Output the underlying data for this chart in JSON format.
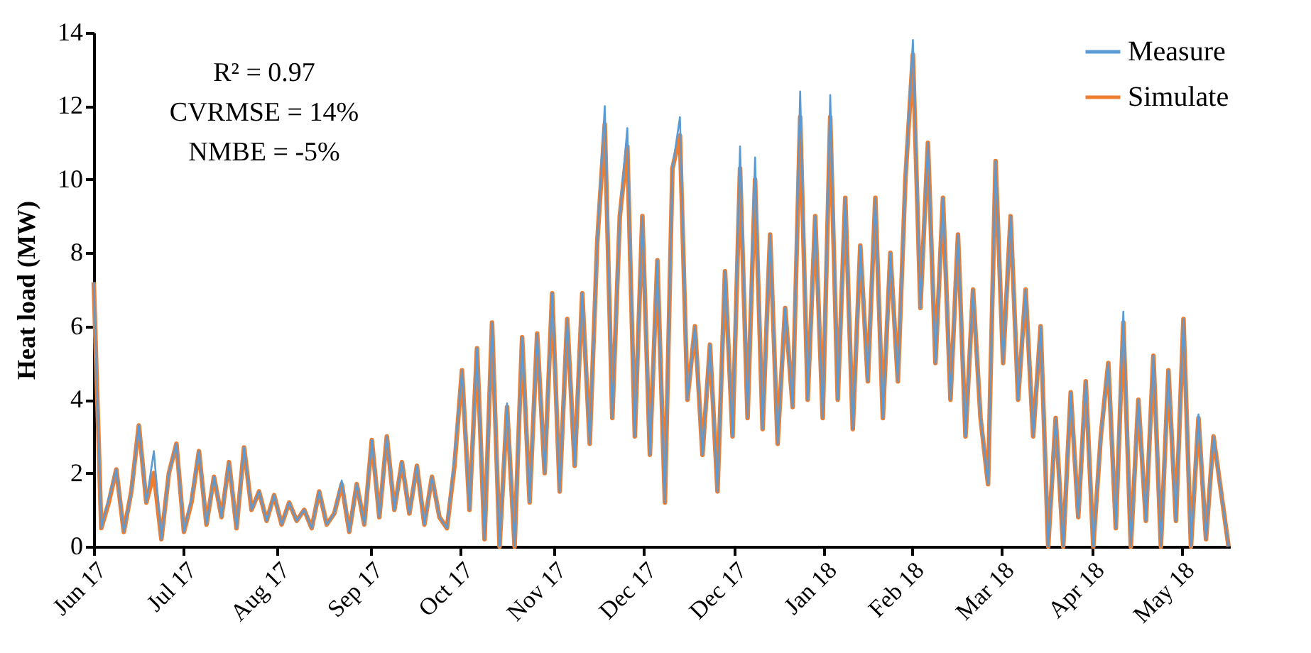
{
  "chart_data": {
    "type": "line",
    "ylabel": "Heat load (MW)",
    "annotations": [
      "R² = 0.97",
      "CVRMSE = 14%",
      "NMBE = -5%"
    ],
    "x": [
      "2017-06-01T00:00",
      "2017-06-03T12:00",
      "2017-06-06T00:00",
      "2017-06-08T12:00",
      "2017-06-11T00:00",
      "2017-06-13T12:00",
      "2017-06-16T00:00",
      "2017-06-18T12:00",
      "2017-06-21T00:00",
      "2017-06-23T12:00",
      "2017-06-26T00:00",
      "2017-06-28T12:00",
      "2017-07-01T00:00",
      "2017-07-03T12:00",
      "2017-07-06T00:00",
      "2017-07-08T12:00",
      "2017-07-11T00:00",
      "2017-07-13T12:00",
      "2017-07-16T00:00",
      "2017-07-18T12:00",
      "2017-07-21T00:00",
      "2017-07-23T12:00",
      "2017-07-26T00:00",
      "2017-07-28T12:00",
      "2017-07-31T00:00",
      "2017-08-02T12:00",
      "2017-08-05T00:00",
      "2017-08-07T12:00",
      "2017-08-10T00:00",
      "2017-08-12T12:00",
      "2017-08-15T00:00",
      "2017-08-17T12:00",
      "2017-08-20T00:00",
      "2017-08-22T12:00",
      "2017-08-25T00:00",
      "2017-08-27T12:00",
      "2017-08-30T00:00",
      "2017-09-01T12:00",
      "2017-09-04T00:00",
      "2017-09-06T12:00",
      "2017-09-09T00:00",
      "2017-09-11T12:00",
      "2017-09-14T00:00",
      "2017-09-16T12:00",
      "2017-09-19T00:00",
      "2017-09-21T12:00",
      "2017-09-24T00:00",
      "2017-09-26T12:00",
      "2017-09-29T00:00",
      "2017-10-01T12:00",
      "2017-10-04T00:00",
      "2017-10-06T12:00",
      "2017-10-09T00:00",
      "2017-10-11T12:00",
      "2017-10-14T00:00",
      "2017-10-16T12:00",
      "2017-10-19T00:00",
      "2017-10-21T12:00",
      "2017-10-24T00:00",
      "2017-10-26T12:00",
      "2017-10-29T00:00",
      "2017-10-31T12:00",
      "2017-11-03T00:00",
      "2017-11-05T12:00",
      "2017-11-08T00:00",
      "2017-11-10T12:00",
      "2017-11-13T00:00",
      "2017-11-15T12:00",
      "2017-11-18T00:00",
      "2017-11-20T12:00",
      "2017-11-23T00:00",
      "2017-11-25T12:00",
      "2017-11-28T00:00",
      "2017-11-30T12:00",
      "2017-12-03T00:00",
      "2017-12-05T12:00",
      "2017-12-08T00:00",
      "2017-12-10T12:00",
      "2017-12-13T00:00",
      "2017-12-15T12:00",
      "2017-12-18T00:00",
      "2017-12-20T12:00",
      "2017-12-23T00:00",
      "2017-12-25T12:00",
      "2017-12-28T00:00",
      "2017-12-30T12:00",
      "2018-01-02T00:00",
      "2018-01-04T12:00",
      "2018-01-07T00:00",
      "2018-01-09T12:00",
      "2018-01-12T00:00",
      "2018-01-14T12:00",
      "2018-01-17T00:00",
      "2018-01-19T12:00",
      "2018-01-22T00:00",
      "2018-01-24T12:00",
      "2018-01-27T00:00",
      "2018-01-29T12:00",
      "2018-02-01T00:00",
      "2018-02-03T12:00",
      "2018-02-06T00:00",
      "2018-02-08T12:00",
      "2018-02-11T00:00",
      "2018-02-13T12:00",
      "2018-02-16T00:00",
      "2018-02-18T12:00",
      "2018-02-21T00:00",
      "2018-02-23T12:00",
      "2018-02-26T00:00",
      "2018-02-28T12:00",
      "2018-03-03T00:00",
      "2018-03-05T12:00",
      "2018-03-08T00:00",
      "2018-03-10T12:00",
      "2018-03-13T00:00",
      "2018-03-15T12:00",
      "2018-03-18T00:00",
      "2018-03-20T12:00",
      "2018-03-23T00:00",
      "2018-03-25T12:00",
      "2018-03-28T00:00",
      "2018-03-30T12:00",
      "2018-04-02T00:00",
      "2018-04-04T12:00",
      "2018-04-07T00:00",
      "2018-04-09T12:00",
      "2018-04-12T00:00",
      "2018-04-14T12:00",
      "2018-04-17T00:00",
      "2018-04-19T12:00",
      "2018-04-22T00:00",
      "2018-04-24T12:00",
      "2018-04-27T00:00",
      "2018-04-29T12:00",
      "2018-05-02T00:00",
      "2018-05-04T12:00",
      "2018-05-07T00:00",
      "2018-05-09T12:00",
      "2018-05-12T00:00",
      "2018-05-14T12:00",
      "2018-05-17T00:00",
      "2018-05-19T12:00",
      "2018-05-22T00:00",
      "2018-05-24T12:00",
      "2018-05-27T00:00",
      "2018-05-29T12:00",
      "2018-06-01T00:00",
      "2018-06-03T12:00",
      "2018-06-06T00:00",
      "2018-06-08T12:00",
      "2018-06-11T00:00",
      "2018-06-13T12:00"
    ],
    "series": [
      {
        "name": "Measure",
        "color": "#5b9bd5",
        "values": [
          7.2,
          0.5,
          1.3,
          2.1,
          0.4,
          1.5,
          3.3,
          1.2,
          2.6,
          0.2,
          2.0,
          2.8,
          0.4,
          1.3,
          2.6,
          0.6,
          1.9,
          0.8,
          2.3,
          0.5,
          2.7,
          1.0,
          1.5,
          0.7,
          1.4,
          0.6,
          1.2,
          0.7,
          1.0,
          0.5,
          1.5,
          0.6,
          0.9,
          1.8,
          0.4,
          1.7,
          0.6,
          2.9,
          0.8,
          3.0,
          1.0,
          2.3,
          0.9,
          2.2,
          0.6,
          1.9,
          0.8,
          0.5,
          2.4,
          4.8,
          1.0,
          5.4,
          0.2,
          6.1,
          0.0,
          3.9,
          0.0,
          5.7,
          1.2,
          5.8,
          2.0,
          6.9,
          1.5,
          6.2,
          2.2,
          6.9,
          2.8,
          8.3,
          12.0,
          3.5,
          9.0,
          11.4,
          3.0,
          9.0,
          2.5,
          7.8,
          1.2,
          10.3,
          11.7,
          4.0,
          6.0,
          2.5,
          5.5,
          1.5,
          7.5,
          3.0,
          10.9,
          3.5,
          10.6,
          3.2,
          8.5,
          2.8,
          6.5,
          3.8,
          12.4,
          4.0,
          9.0,
          3.5,
          12.3,
          4.0,
          9.5,
          3.2,
          8.2,
          4.5,
          9.5,
          3.5,
          8.0,
          4.5,
          10.0,
          13.8,
          6.5,
          11.0,
          5.0,
          9.5,
          4.0,
          8.5,
          3.0,
          7.0,
          3.5,
          1.7,
          10.5,
          5.0,
          9.0,
          4.0,
          7.0,
          3.0,
          6.0,
          0.0,
          3.5,
          0.0,
          4.2,
          0.8,
          4.5,
          0.0,
          3.0,
          5.0,
          0.5,
          6.4,
          0.0,
          4.0,
          0.7,
          5.2,
          0.0,
          4.8,
          0.7,
          6.2,
          0.0,
          3.6,
          0.2,
          3.0,
          1.5,
          0.0
        ]
      },
      {
        "name": "Simulate",
        "color": "#ed7d31",
        "values": [
          7.2,
          0.5,
          1.2,
          2.1,
          0.4,
          1.5,
          3.3,
          1.2,
          2.0,
          0.2,
          2.0,
          2.8,
          0.4,
          1.2,
          2.6,
          0.6,
          1.9,
          0.8,
          2.3,
          0.5,
          2.7,
          1.0,
          1.5,
          0.7,
          1.4,
          0.6,
          1.2,
          0.7,
          1.0,
          0.5,
          1.5,
          0.6,
          0.9,
          1.7,
          0.4,
          1.7,
          0.6,
          2.9,
          0.8,
          3.0,
          1.0,
          2.3,
          0.9,
          2.2,
          0.6,
          1.9,
          0.8,
          0.5,
          2.2,
          4.8,
          1.0,
          5.4,
          0.2,
          6.1,
          0.0,
          3.8,
          0.0,
          5.7,
          1.2,
          5.8,
          2.0,
          6.9,
          1.5,
          6.2,
          2.2,
          6.9,
          2.8,
          8.3,
          11.5,
          3.5,
          9.0,
          10.9,
          3.0,
          9.0,
          2.5,
          7.8,
          1.2,
          10.3,
          11.2,
          4.0,
          6.0,
          2.5,
          5.5,
          1.5,
          7.5,
          3.0,
          10.3,
          3.5,
          10.0,
          3.2,
          8.5,
          2.8,
          6.5,
          3.8,
          11.7,
          4.0,
          9.0,
          3.5,
          11.7,
          4.0,
          9.5,
          3.2,
          8.2,
          4.5,
          9.5,
          3.5,
          8.0,
          4.5,
          10.0,
          13.4,
          6.5,
          11.0,
          5.0,
          9.5,
          4.0,
          8.5,
          3.0,
          7.0,
          3.5,
          1.7,
          10.5,
          5.0,
          9.0,
          4.0,
          7.0,
          3.0,
          6.0,
          0.0,
          3.5,
          0.0,
          4.2,
          0.8,
          4.5,
          0.0,
          3.0,
          5.0,
          0.5,
          6.1,
          0.0,
          4.0,
          0.7,
          5.2,
          0.0,
          4.8,
          0.7,
          6.2,
          0.0,
          3.5,
          0.2,
          3.0,
          1.5,
          0.0
        ]
      }
    ],
    "xlim": [
      "2017-06-01",
      "2018-06-14"
    ],
    "xticks": [
      {
        "value": "2017-06-01",
        "label": "Jun 17"
      },
      {
        "value": "2017-07-01",
        "label": "Jul 17"
      },
      {
        "value": "2017-08-01",
        "label": "Aug 17"
      },
      {
        "value": "2017-09-01",
        "label": "Sep 17"
      },
      {
        "value": "2017-10-01",
        "label": "Oct 17"
      },
      {
        "value": "2017-11-01",
        "label": "Nov 17"
      },
      {
        "value": "2017-12-01",
        "label": "Dec 17"
      },
      {
        "value": "2017-12-31",
        "label": "Dec 17"
      },
      {
        "value": "2018-01-30",
        "label": "Jan 18"
      },
      {
        "value": "2018-02-28",
        "label": "Feb 18"
      },
      {
        "value": "2018-03-30",
        "label": "Mar 18"
      },
      {
        "value": "2018-04-29",
        "label": "Apr 18"
      },
      {
        "value": "2018-05-29",
        "label": "May 18"
      }
    ],
    "ylim": [
      0,
      14
    ],
    "yticks": [
      0,
      2,
      4,
      6,
      8,
      10,
      12,
      14
    ],
    "grid": false,
    "legend": "top right",
    "marker": "none",
    "line_style": "solid"
  }
}
